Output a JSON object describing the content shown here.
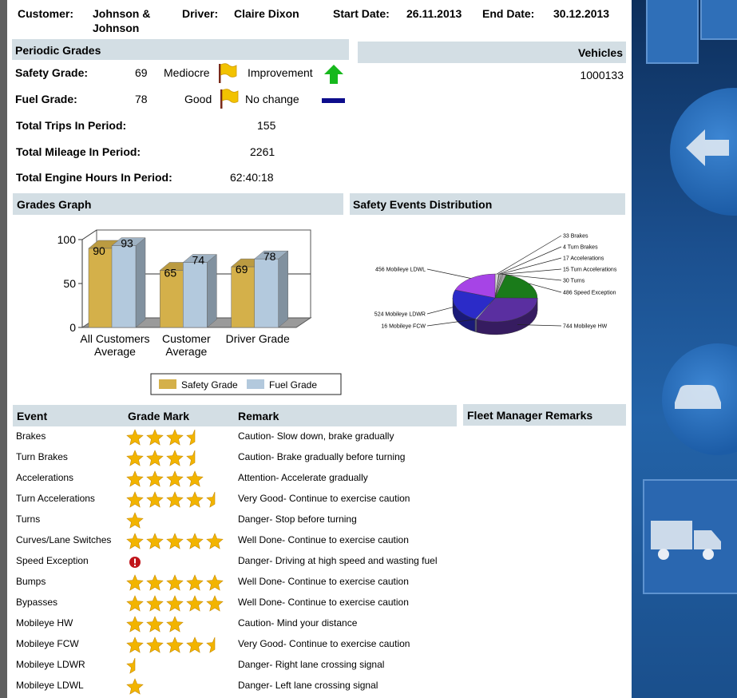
{
  "header": {
    "customer_label": "Customer:",
    "customer_line1": "Johnson &",
    "customer_line2": "Johnson",
    "driver_label": "Driver:",
    "driver_value": "Claire Dixon",
    "start_label": "Start Date:",
    "start_value": "26.11.2013",
    "end_label": "End Date:",
    "end_value": "30.12.2013"
  },
  "periodic": {
    "title": "Periodic Grades",
    "safety_label": "Safety Grade:",
    "safety_value": "69",
    "safety_rating": "Mediocre",
    "safety_trend": "Improvement",
    "fuel_label": "Fuel Grade:",
    "fuel_value": "78",
    "fuel_rating": "Good",
    "fuel_trend": "No change",
    "trips_label": "Total Trips In Period:",
    "trips_value": "155",
    "mileage_label": "Total Mileage In Period:",
    "mileage_value": "2261",
    "hours_label": "Total Engine Hours In Period:",
    "hours_value": "62:40:18"
  },
  "vehicles": {
    "title": "Vehicles",
    "items": [
      "1000133"
    ]
  },
  "grades_graph": {
    "title": "Grades Graph"
  },
  "safety_dist": {
    "title": "Safety Events Distribution"
  },
  "chart_data": [
    {
      "type": "bar",
      "categories": [
        "All Customers Average",
        "Customer Average",
        "Driver Grade"
      ],
      "series": [
        {
          "name": "Safety Grade",
          "values": [
            90,
            65,
            69
          ],
          "color": "#d4b04a"
        },
        {
          "name": "Fuel Grade",
          "values": [
            93,
            74,
            78
          ],
          "color": "#b3c9dd"
        }
      ],
      "yticks": [
        "0",
        "50",
        "100"
      ],
      "ylim": [
        0,
        100
      ],
      "legend_position": "bottom"
    },
    {
      "type": "pie",
      "slices": [
        {
          "label": "33 Brakes",
          "value": 33,
          "color": "#d7d7d7"
        },
        {
          "label": "4 Turn Brakes",
          "value": 4,
          "color": "#c9c9c9"
        },
        {
          "label": "17 Accelerations",
          "value": 17,
          "color": "#bdbdbd"
        },
        {
          "label": "15 Turn Accelerations",
          "value": 15,
          "color": "#b0b0b0"
        },
        {
          "label": "30 Turns",
          "value": 30,
          "color": "#a4a4a4"
        },
        {
          "label": "486 Speed Exception",
          "value": 486,
          "color": "#1a7b1a"
        },
        {
          "label": "744 Mobileye HW",
          "value": 744,
          "color": "#5a2fa0"
        },
        {
          "label": "16 Mobileye FCW",
          "value": 16,
          "color": "#9999cc"
        },
        {
          "label": "524 Mobileye LDWR",
          "value": 524,
          "color": "#2b2bc8"
        },
        {
          "label": "456 Mobileye LDWL",
          "value": 456,
          "color": "#a644e6"
        }
      ]
    }
  ],
  "events": {
    "col_event": "Event",
    "col_grade": "Grade Mark",
    "col_remark": "Remark",
    "fleet_title": "Fleet Manager Remarks",
    "rows": [
      {
        "event": "Brakes",
        "stars": 3.5,
        "remark": "Caution- Slow down, brake gradually"
      },
      {
        "event": "Turn Brakes",
        "stars": 3.5,
        "remark": "Caution- Brake gradually before turning"
      },
      {
        "event": "Accelerations",
        "stars": 4,
        "remark": "Attention- Accelerate gradually"
      },
      {
        "event": "Turn Accelerations",
        "stars": 4.5,
        "remark": "Very Good- Continue to exercise caution"
      },
      {
        "event": "Turns",
        "stars": 1,
        "remark": "Danger- Stop before turning"
      },
      {
        "event": "Curves/Lane Switches",
        "stars": 5,
        "remark": "Well Done- Continue to exercise caution"
      },
      {
        "event": "Speed Exception",
        "stars": 0,
        "alert": true,
        "remark": "Danger- Driving at high speed and wasting fuel"
      },
      {
        "event": "Bumps",
        "stars": 5,
        "remark": "Well Done- Continue to exercise caution"
      },
      {
        "event": "Bypasses",
        "stars": 5,
        "remark": "Well Done- Continue to exercise caution"
      },
      {
        "event": "Mobileye HW",
        "stars": 3,
        "remark": "Caution- Mind your distance"
      },
      {
        "event": "Mobileye FCW",
        "stars": 4.5,
        "remark": "Very Good- Continue to exercise caution"
      },
      {
        "event": "Mobileye LDWR",
        "stars": 0.5,
        "remark": "Danger- Right lane crossing signal"
      },
      {
        "event": "Mobileye LDWL",
        "stars": 1,
        "remark": "Danger- Left lane crossing signal"
      }
    ]
  },
  "icons": {
    "flag": "flag-icon",
    "up_arrow": "up-arrow-icon",
    "no_change": "dash-icon",
    "star": "star-icon",
    "alert": "alert-icon"
  },
  "colors": {
    "section_header": "#d3dee4",
    "star": "#f2b400",
    "flag": "#f2c200",
    "up_arrow": "#16b81c",
    "no_change": "#0d0d8c",
    "alert": "#c0151b"
  }
}
